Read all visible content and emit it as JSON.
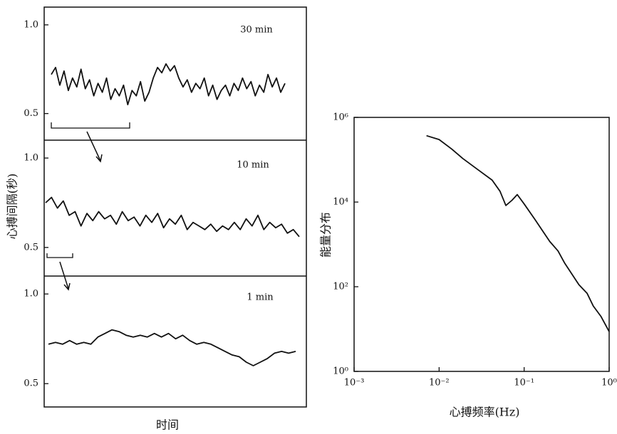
{
  "chart_data": [
    {
      "type": "line",
      "annotation": "30 min",
      "values": [
        0.72,
        0.76,
        0.66,
        0.74,
        0.63,
        0.7,
        0.65,
        0.75,
        0.64,
        0.69,
        0.6,
        0.67,
        0.62,
        0.7,
        0.58,
        0.64,
        0.6,
        0.66,
        0.55,
        0.63,
        0.6,
        0.68,
        0.57,
        0.62,
        0.7,
        0.76,
        0.73,
        0.78,
        0.74,
        0.77,
        0.7,
        0.65,
        0.69,
        0.62,
        0.67,
        0.64,
        0.7,
        0.6,
        0.66,
        0.58,
        0.63,
        0.66,
        0.6,
        0.67,
        0.63,
        0.7,
        0.64,
        0.68,
        0.6,
        0.66,
        0.62,
        0.72,
        0.65,
        0.7,
        0.62,
        0.67
      ],
      "ylim": [
        0.35,
        1.1
      ],
      "yticks": [
        0.5,
        {
          "value": 1,
          "label": "1.0"
        }
      ]
    },
    {
      "type": "line",
      "annotation": "10 min",
      "ylabel": "心搏间隔(秒)",
      "values": [
        0.75,
        0.78,
        0.72,
        0.76,
        0.68,
        0.7,
        0.62,
        0.69,
        0.65,
        0.7,
        0.66,
        0.68,
        0.63,
        0.7,
        0.65,
        0.67,
        0.62,
        0.68,
        0.64,
        0.69,
        0.61,
        0.66,
        0.63,
        0.68,
        0.6,
        0.64,
        0.62,
        0.6,
        0.63,
        0.59,
        0.62,
        0.6,
        0.64,
        0.6,
        0.66,
        0.62,
        0.68,
        0.6,
        0.64,
        0.61,
        0.63,
        0.58,
        0.6,
        0.56
      ],
      "ylim": [
        0.34,
        1.1
      ],
      "yticks": [
        0.5,
        {
          "value": 1,
          "label": "1.0"
        }
      ]
    },
    {
      "type": "line",
      "annotation": "1 min",
      "xlabel": "时间",
      "values": [
        0.72,
        0.73,
        0.72,
        0.74,
        0.72,
        0.73,
        0.72,
        0.76,
        0.78,
        0.8,
        0.79,
        0.77,
        0.76,
        0.77,
        0.76,
        0.78,
        0.76,
        0.78,
        0.75,
        0.77,
        0.74,
        0.72,
        0.73,
        0.72,
        0.7,
        0.68,
        0.66,
        0.65,
        0.62,
        0.6,
        0.62,
        0.64,
        0.67,
        0.68,
        0.67,
        0.68
      ],
      "ylim": [
        0.37,
        1.1
      ],
      "yticks": [
        0.5,
        {
          "value": 1,
          "label": "1.0"
        }
      ]
    },
    {
      "type": "line",
      "log_scale": true,
      "xlabel": "心搏频率(Hz)",
      "ylabel": "能量分布",
      "x": [
        0.0071,
        0.01,
        0.014,
        0.019,
        0.028,
        0.042,
        0.052,
        0.061,
        0.072,
        0.083,
        0.1,
        0.135,
        0.2,
        0.25,
        0.3,
        0.44,
        0.55,
        0.65,
        0.8,
        1
      ],
      "values": [
        370000,
        300000,
        180000,
        107000,
        60000,
        33000,
        18000,
        8300,
        11000,
        15000,
        9000,
        3800,
        1170,
        700,
        360,
        112,
        70,
        35,
        20,
        8.7
      ],
      "xlim": [
        0.001,
        1
      ],
      "ylim": [
        1,
        1000000
      ],
      "xticks": [
        {
          "value": 0.001,
          "label": "10⁻³"
        },
        {
          "value": 0.01,
          "label": "10⁻²"
        },
        {
          "value": 0.1,
          "label": "10⁻¹"
        },
        {
          "value": 1,
          "label": "10⁰"
        }
      ],
      "yticks": [
        {
          "value": 1,
          "label": "10⁰"
        },
        {
          "value": 100,
          "label": "10²"
        },
        {
          "value": 10000,
          "label": "10⁴"
        },
        {
          "value": 1000000,
          "label": "10⁶"
        }
      ]
    }
  ]
}
